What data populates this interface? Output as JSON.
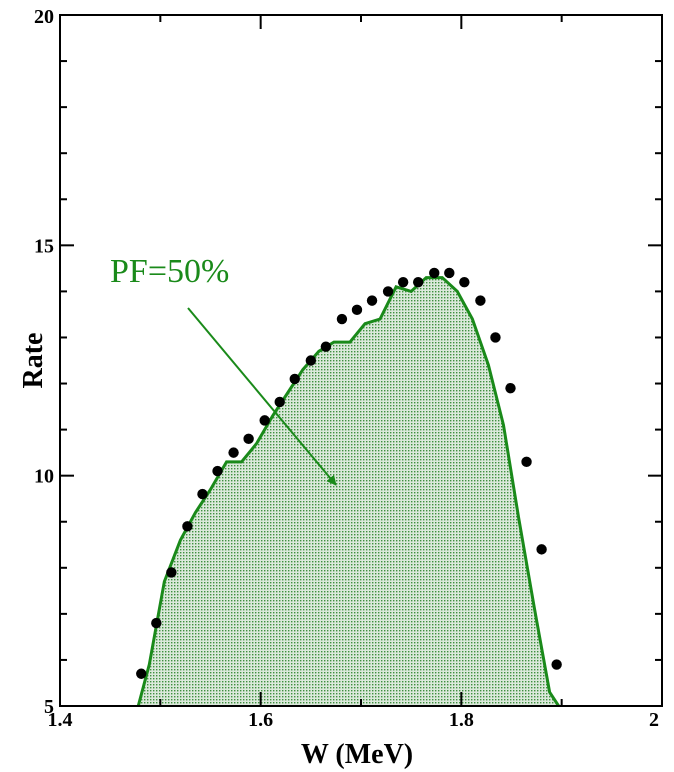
{
  "chart_data": {
    "type": "area",
    "title": "",
    "xlabel": "W (MeV)",
    "ylabel": "Rate",
    "xlim": [
      1.4,
      2.0
    ],
    "ylim": [
      5,
      20
    ],
    "x_ticks": [
      1.4,
      1.6,
      1.8,
      2.0
    ],
    "x_tick_labels": [
      "1.4",
      "1.6",
      "1.8",
      "2"
    ],
    "y_ticks": [
      5,
      10,
      15,
      20
    ],
    "y_tick_labels": [
      "5",
      "10",
      "15",
      "20"
    ],
    "grid": false,
    "colors": {
      "curve": "#1a8a1a",
      "fill": "#3f8f3f",
      "points": "#000000"
    },
    "annotation": {
      "text": "PF=50%",
      "arrow_from": [
        1.58,
        14.0
      ],
      "arrow_to": [
        1.675,
        9.8
      ]
    },
    "series": [
      {
        "type": "area",
        "x": [
          1.478,
          1.489,
          1.504,
          1.52,
          1.535,
          1.55,
          1.566,
          1.581,
          1.596,
          1.612,
          1.627,
          1.642,
          1.658,
          1.673,
          1.689,
          1.704,
          1.719,
          1.735,
          1.75,
          1.765,
          1.781,
          1.796,
          1.811,
          1.827,
          1.842,
          1.857,
          1.873,
          1.888,
          1.897
        ],
        "values": [
          5.0,
          5.9,
          7.7,
          8.6,
          9.2,
          9.7,
          10.3,
          10.3,
          10.7,
          11.3,
          11.8,
          12.3,
          12.7,
          12.9,
          12.9,
          13.3,
          13.4,
          14.1,
          14.0,
          14.3,
          14.3,
          14.0,
          13.4,
          12.4,
          11.1,
          9.1,
          7.1,
          5.3,
          5.0
        ]
      },
      {
        "type": "scatter",
        "x": [
          1.481,
          1.496,
          1.511,
          1.527,
          1.542,
          1.557,
          1.573,
          1.588,
          1.604,
          1.619,
          1.634,
          1.65,
          1.665,
          1.681,
          1.696,
          1.711,
          1.727,
          1.742,
          1.757,
          1.773,
          1.788,
          1.803,
          1.819,
          1.834,
          1.849,
          1.865,
          1.88,
          1.895
        ],
        "values": [
          5.7,
          6.8,
          7.9,
          8.9,
          9.6,
          10.1,
          10.5,
          10.8,
          11.2,
          11.6,
          12.1,
          12.5,
          12.8,
          13.4,
          13.6,
          13.8,
          14.0,
          14.2,
          14.2,
          14.4,
          14.4,
          14.2,
          13.8,
          13.0,
          11.9,
          10.3,
          8.4,
          5.9
        ]
      }
    ]
  }
}
